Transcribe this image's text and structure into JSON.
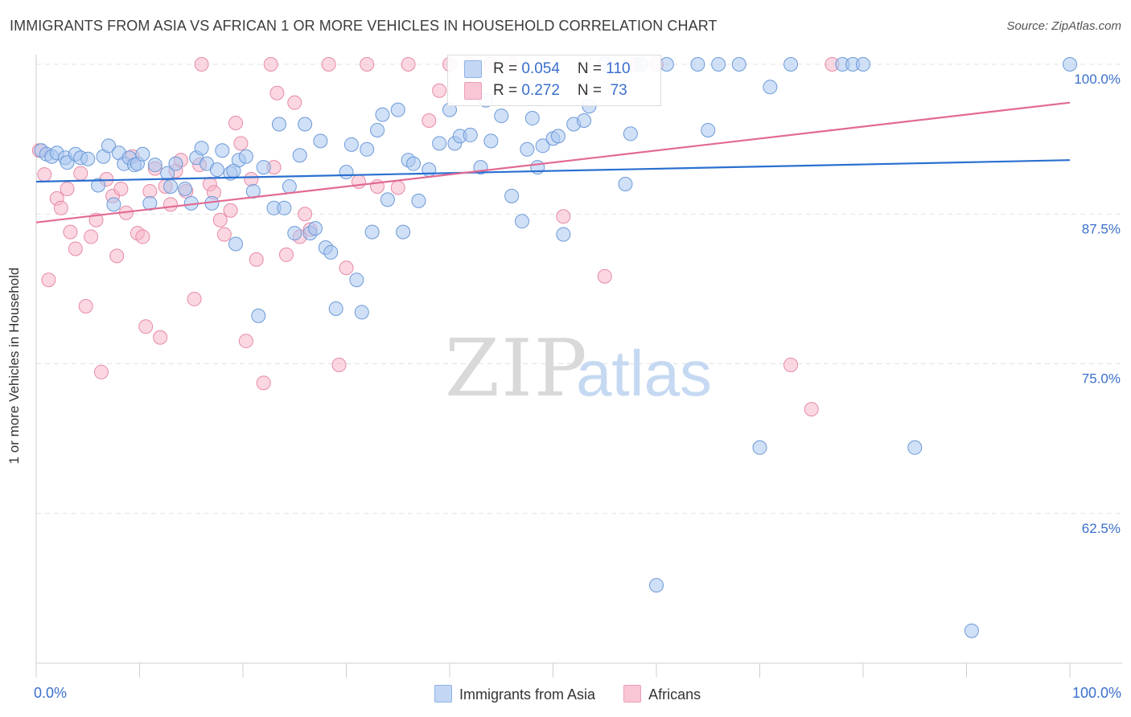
{
  "title": "IMMIGRANTS FROM ASIA VS AFRICAN 1 OR MORE VEHICLES IN HOUSEHOLD CORRELATION CHART",
  "source": "Source: ZipAtlas.com",
  "watermark": {
    "zip": "ZIP",
    "atlas": "atlas"
  },
  "legend_top": {
    "rows": [
      {
        "r_label": "R = ",
        "r_value": "0.054",
        "n_label": "N = ",
        "n_value": "110",
        "color": "#aac6f0"
      },
      {
        "r_label": "R = ",
        "r_value": "0.272",
        "n_label": "N = ",
        "n_value": " 73",
        "color": "#f5b6c8"
      }
    ]
  },
  "legend_bottom": [
    {
      "label": "Immigrants from Asia",
      "color": "#aac6f0"
    },
    {
      "label": "Africans",
      "color": "#f5b6c8"
    }
  ],
  "axis": {
    "ylabel": "1 or more Vehicles in Household",
    "x_left": "0.0%",
    "x_right": "100.0%",
    "y_ticks": [
      "100.0%",
      "87.5%",
      "75.0%",
      "62.5%"
    ]
  },
  "colors": {
    "blue_fill": "#aac6f0",
    "blue_stroke": "#6c9ad8",
    "blue_line": "#2a6fd0",
    "pink_fill": "#f5b6c8",
    "pink_stroke": "#e88aa6",
    "pink_line": "#e26a92",
    "tick_text": "#3a6fcc"
  },
  "chart_data": {
    "type": "scatter",
    "xlim": [
      0,
      100
    ],
    "ylim": [
      50,
      100
    ],
    "grid": true,
    "series": [
      {
        "name": "Immigrants from Asia",
        "trend": {
          "x": [
            0,
            100
          ],
          "y": [
            90.2,
            92.0
          ]
        },
        "points": [
          [
            0.5,
            92.8
          ],
          [
            1,
            92.5
          ],
          [
            1.5,
            92.3
          ],
          [
            2,
            92.6
          ],
          [
            2.8,
            92.2
          ],
          [
            3,
            91.8
          ],
          [
            3.8,
            92.5
          ],
          [
            4.3,
            92.2
          ],
          [
            5,
            92.1
          ],
          [
            6,
            89.9
          ],
          [
            6.5,
            92.3
          ],
          [
            7,
            93.2
          ],
          [
            7.5,
            88.3
          ],
          [
            8,
            92.6
          ],
          [
            8.5,
            91.7
          ],
          [
            9,
            92.2
          ],
          [
            9.5,
            91.6
          ],
          [
            9.8,
            91.7
          ],
          [
            10.3,
            92.5
          ],
          [
            11,
            88.4
          ],
          [
            11.5,
            91.6
          ],
          [
            12.7,
            90.9
          ],
          [
            13,
            89.8
          ],
          [
            13.5,
            91.7
          ],
          [
            14.4,
            89.6
          ],
          [
            15,
            88.4
          ],
          [
            15.5,
            92.2
          ],
          [
            16,
            93.0
          ],
          [
            16.5,
            91.7
          ],
          [
            17,
            88.4
          ],
          [
            17.5,
            91.2
          ],
          [
            18,
            92.8
          ],
          [
            18.8,
            90.9
          ],
          [
            19.1,
            91.1
          ],
          [
            19.3,
            85.0
          ],
          [
            19.6,
            92.0
          ],
          [
            20.3,
            92.3
          ],
          [
            21,
            89.4
          ],
          [
            21.5,
            79.0
          ],
          [
            22,
            91.4
          ],
          [
            23,
            88.0
          ],
          [
            23.5,
            95.0
          ],
          [
            24,
            88.0
          ],
          [
            24.5,
            89.8
          ],
          [
            25,
            85.9
          ],
          [
            25.5,
            92.4
          ],
          [
            26,
            95.0
          ],
          [
            26.5,
            85.9
          ],
          [
            27,
            86.3
          ],
          [
            27.5,
            93.6
          ],
          [
            28,
            84.7
          ],
          [
            28.5,
            84.3
          ],
          [
            29,
            79.6
          ],
          [
            30,
            91.0
          ],
          [
            30.5,
            93.3
          ],
          [
            31,
            82.0
          ],
          [
            31.5,
            79.3
          ],
          [
            32,
            92.9
          ],
          [
            32.5,
            86.0
          ],
          [
            33,
            94.5
          ],
          [
            33.5,
            95.8
          ],
          [
            34,
            88.7
          ],
          [
            35,
            96.2
          ],
          [
            35.5,
            86.0
          ],
          [
            36,
            92.0
          ],
          [
            36.5,
            91.7
          ],
          [
            37,
            88.6
          ],
          [
            38,
            91.2
          ],
          [
            39,
            93.4
          ],
          [
            40,
            96.2
          ],
          [
            40.5,
            93.4
          ],
          [
            41,
            94.0
          ],
          [
            42,
            94.1
          ],
          [
            43,
            91.4
          ],
          [
            43.5,
            97.0
          ],
          [
            44,
            93.6
          ],
          [
            45,
            95.7
          ],
          [
            46,
            89.0
          ],
          [
            47,
            86.9
          ],
          [
            47.5,
            92.9
          ],
          [
            48,
            95.5
          ],
          [
            48.5,
            91.4
          ],
          [
            49,
            93.2
          ],
          [
            50,
            93.8
          ],
          [
            50.5,
            94.0
          ],
          [
            51,
            85.8
          ],
          [
            52,
            95.0
          ],
          [
            53,
            95.3
          ],
          [
            53.5,
            96.5
          ],
          [
            55,
            100
          ],
          [
            57,
            90.0
          ],
          [
            57.5,
            94.2
          ],
          [
            58.5,
            100
          ],
          [
            60,
            56.5
          ],
          [
            61,
            100
          ],
          [
            64,
            100
          ],
          [
            65,
            94.5
          ],
          [
            66,
            100
          ],
          [
            68,
            100
          ],
          [
            70,
            68.0
          ],
          [
            71,
            98.1
          ],
          [
            73,
            100
          ],
          [
            78,
            100
          ],
          [
            79,
            100
          ],
          [
            80,
            100
          ],
          [
            85,
            68.0
          ],
          [
            90.5,
            52.7
          ],
          [
            100,
            100
          ]
        ]
      },
      {
        "name": "Africans",
        "trend": {
          "x": [
            0,
            100
          ],
          "y": [
            86.8,
            96.8
          ]
        },
        "points": [
          [
            0.3,
            92.8
          ],
          [
            0.8,
            90.8
          ],
          [
            1.2,
            82.0
          ],
          [
            2,
            88.8
          ],
          [
            2.4,
            88.0
          ],
          [
            3,
            89.6
          ],
          [
            3.3,
            86.0
          ],
          [
            3.8,
            84.6
          ],
          [
            4.3,
            90.9
          ],
          [
            4.8,
            79.8
          ],
          [
            5.3,
            85.6
          ],
          [
            5.8,
            87.0
          ],
          [
            6.3,
            74.3
          ],
          [
            6.8,
            90.4
          ],
          [
            7.4,
            89.0
          ],
          [
            7.8,
            84.0
          ],
          [
            8.2,
            89.6
          ],
          [
            8.7,
            87.6
          ],
          [
            9.3,
            92.3
          ],
          [
            9.8,
            85.9
          ],
          [
            10.3,
            85.6
          ],
          [
            10.6,
            78.1
          ],
          [
            11,
            89.4
          ],
          [
            11.5,
            91.3
          ],
          [
            12,
            77.2
          ],
          [
            12.5,
            89.8
          ],
          [
            13,
            88.3
          ],
          [
            13.5,
            91.1
          ],
          [
            14,
            92.0
          ],
          [
            14.5,
            89.4
          ],
          [
            15.3,
            80.4
          ],
          [
            15.8,
            91.6
          ],
          [
            16,
            100
          ],
          [
            16.8,
            90.0
          ],
          [
            17.2,
            89.3
          ],
          [
            17.8,
            87.0
          ],
          [
            18.2,
            85.8
          ],
          [
            18.8,
            87.8
          ],
          [
            19.3,
            95.1
          ],
          [
            19.8,
            93.4
          ],
          [
            20.3,
            76.9
          ],
          [
            20.8,
            90.4
          ],
          [
            21.3,
            83.7
          ],
          [
            22,
            73.4
          ],
          [
            22.7,
            100
          ],
          [
            23,
            91.4
          ],
          [
            23.3,
            97.6
          ],
          [
            24.2,
            84.1
          ],
          [
            25,
            96.8
          ],
          [
            25.5,
            85.6
          ],
          [
            26,
            87.5
          ],
          [
            26.5,
            86.2
          ],
          [
            28.3,
            100
          ],
          [
            29.3,
            74.9
          ],
          [
            30,
            83.0
          ],
          [
            31.2,
            90.2
          ],
          [
            32,
            100
          ],
          [
            33,
            89.8
          ],
          [
            35,
            89.7
          ],
          [
            36,
            100
          ],
          [
            38,
            95.3
          ],
          [
            39,
            97.8
          ],
          [
            40,
            100
          ],
          [
            42,
            100
          ],
          [
            44,
            100
          ],
          [
            46,
            100
          ],
          [
            51,
            87.3
          ],
          [
            55,
            82.3
          ],
          [
            58,
            100
          ],
          [
            60,
            100
          ],
          [
            73,
            74.9
          ],
          [
            75,
            71.2
          ],
          [
            77,
            100
          ]
        ]
      }
    ]
  }
}
